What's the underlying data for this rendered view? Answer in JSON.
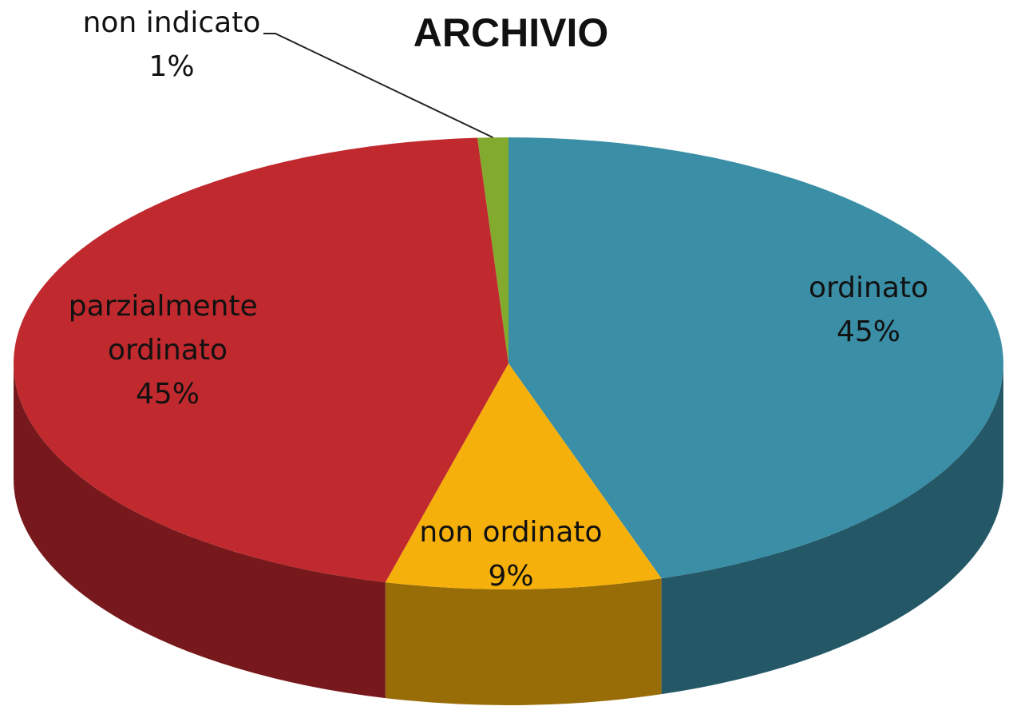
{
  "chart_data": {
    "type": "pie",
    "title": "ARCHIVIO",
    "categories": [
      "ordinato",
      "non ordinato",
      "parzialmente ordinato",
      "non indicato"
    ],
    "values": [
      45,
      9,
      45,
      1
    ],
    "value_labels": [
      "45%",
      "9%",
      "45%",
      "1%"
    ],
    "colors": [
      "#3a8ea6",
      "#f5b00b",
      "#c0292d",
      "#82aa2f"
    ]
  }
}
